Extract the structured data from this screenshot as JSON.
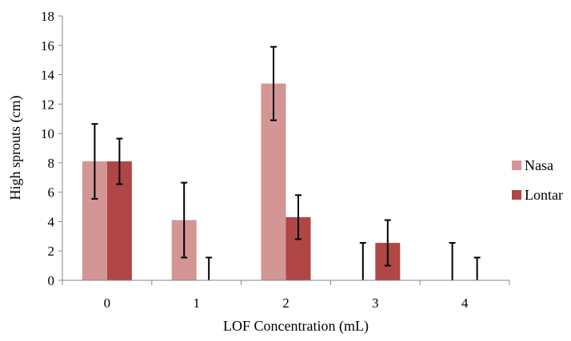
{
  "chart_data": {
    "type": "bar",
    "title": "",
    "xlabel": "LOF Concentration (mL)",
    "ylabel": "High sprouts (cm)",
    "categories": [
      "0",
      "1",
      "2",
      "3",
      "4"
    ],
    "ylim": [
      0,
      18
    ],
    "yticks": [
      "0",
      "2",
      "4",
      "6",
      "8",
      "10",
      "12",
      "14",
      "16",
      "18"
    ],
    "grid": false,
    "legend_position": "right",
    "series": [
      {
        "name": "Nasa",
        "color": "#d49595",
        "values": [
          8.1,
          4.1,
          13.4,
          0,
          0
        ],
        "error": [
          2.55,
          2.55,
          2.5,
          2.55,
          2.55
        ]
      },
      {
        "name": "Lontar",
        "color": "#b04646",
        "values": [
          8.1,
          0,
          4.3,
          2.55,
          0
        ],
        "error": [
          1.55,
          1.55,
          1.5,
          1.55,
          1.55
        ]
      }
    ]
  }
}
